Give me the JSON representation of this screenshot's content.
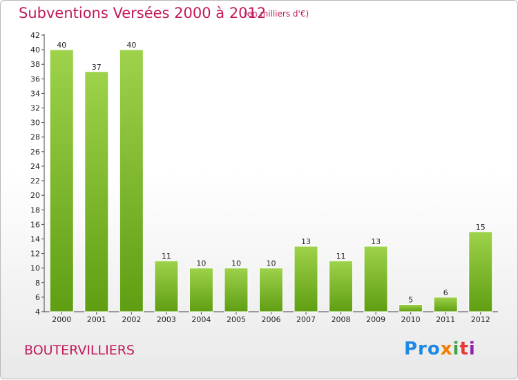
{
  "header": {
    "title": "Subventions Versées 2000 à 2012",
    "unit": "(en milliers d'€)"
  },
  "footer": {
    "commune": "BOUTERVILLIERS",
    "logo_parts": [
      "Pro",
      "x",
      "i",
      "t",
      "i"
    ]
  },
  "colors": {
    "title": "#c2185b",
    "bar_light": "#9ed24b",
    "bar_dark": "#5f9e12"
  },
  "chart_data": {
    "type": "bar",
    "title": "Subventions Versées 2000 à 2012",
    "subtitle": "(en milliers d'€)",
    "categories": [
      "2000",
      "2001",
      "2002",
      "2003",
      "2004",
      "2005",
      "2006",
      "2007",
      "2008",
      "2009",
      "2010",
      "2011",
      "2012"
    ],
    "values": [
      40,
      37,
      40,
      11,
      10,
      10,
      10,
      13,
      11,
      13,
      5,
      6,
      15
    ],
    "ylim": [
      4,
      42
    ],
    "yticks": [
      4,
      6,
      8,
      10,
      12,
      14,
      16,
      18,
      20,
      22,
      24,
      26,
      28,
      30,
      32,
      34,
      36,
      38,
      40,
      42
    ],
    "grid": false,
    "legend": "none"
  }
}
